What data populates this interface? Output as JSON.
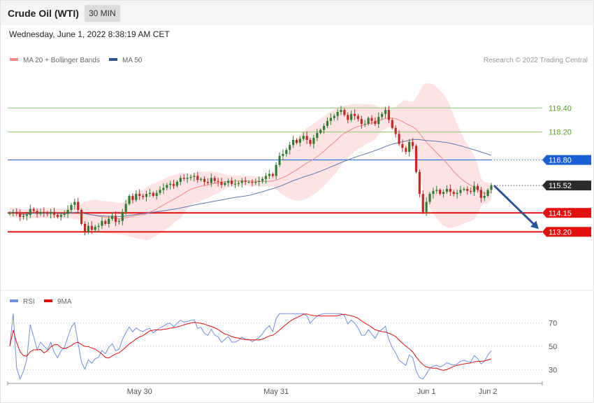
{
  "header": {
    "instrument": "Crude Oil (WTI)",
    "timeframe": "30 MIN",
    "datetime": "Wednesday, June 1, 2022 8:38:19 AM CET"
  },
  "legend_main": [
    {
      "label": "MA 20 + Bollinger Bands",
      "color": "#f08a8a"
    },
    {
      "label": "MA 50",
      "color": "#2b5597"
    }
  ],
  "credit": "Research © 2022 Trading Central",
  "legend_rsi": [
    {
      "label": "RSI",
      "color": "#6f8fe0"
    },
    {
      "label": "9MA",
      "color": "#e01010"
    }
  ],
  "colors": {
    "bull": "#2e7d32",
    "bear": "#c62828",
    "resistance": "#8cc870",
    "pivot": "#1a5fd6",
    "support": "#e31010",
    "last_price": "#2b2b2b",
    "band_fill": "#fcdcdc",
    "arrow": "#2b5597"
  },
  "chart_data": [
    {
      "type": "candlestick",
      "name": "price",
      "ylim": [
        110.8,
        121.3
      ],
      "x_labels": [
        {
          "label": "May 30",
          "index": 38
        },
        {
          "label": "May 31",
          "index": 78
        },
        {
          "label": "Jun 1",
          "index": 122
        },
        {
          "label": "Jun 2",
          "index": 140
        }
      ],
      "levels": [
        {
          "value": 119.4,
          "label": "119.40",
          "kind": "resistance"
        },
        {
          "value": 118.2,
          "label": "118.20",
          "kind": "resistance"
        },
        {
          "value": 116.8,
          "label": "116.80",
          "kind": "pivot"
        },
        {
          "value": 115.52,
          "label": "115.52",
          "kind": "last_price"
        },
        {
          "value": 114.15,
          "label": "114.15",
          "kind": "support"
        },
        {
          "value": 113.2,
          "label": "113.20",
          "kind": "support"
        }
      ],
      "closes": [
        114.15,
        114.2,
        114.1,
        113.95,
        114.0,
        114.05,
        114.35,
        114.25,
        114.1,
        114.2,
        114.15,
        114.1,
        114.2,
        114.05,
        113.95,
        114.05,
        114.1,
        114.3,
        114.55,
        114.7,
        114.3,
        113.6,
        113.2,
        113.5,
        113.3,
        113.45,
        113.5,
        113.75,
        113.6,
        113.85,
        114.0,
        113.7,
        113.75,
        114.2,
        114.6,
        115.0,
        114.8,
        115.1,
        115.0,
        114.95,
        115.1,
        115.15,
        115.0,
        115.15,
        115.3,
        115.4,
        115.55,
        115.6,
        115.5,
        115.7,
        115.9,
        115.85,
        115.9,
        115.95,
        116.0,
        115.8,
        115.85,
        115.7,
        115.65,
        115.9,
        115.75,
        115.7,
        115.55,
        115.65,
        115.75,
        115.6,
        115.6,
        115.65,
        115.75,
        115.7,
        115.7,
        115.65,
        115.7,
        115.75,
        115.85,
        116.0,
        116.1,
        116.0,
        116.55,
        117.0,
        117.1,
        117.3,
        117.55,
        117.8,
        117.65,
        117.85,
        118.0,
        117.8,
        117.6,
        117.9,
        118.15,
        118.3,
        118.5,
        118.75,
        118.9,
        119.0,
        119.2,
        119.3,
        119.05,
        118.8,
        119.1,
        119.0,
        118.85,
        118.6,
        118.6,
        118.9,
        118.75,
        118.6,
        118.95,
        119.1,
        119.3,
        118.8,
        118.4,
        118.1,
        117.6,
        117.4,
        117.2,
        117.7,
        117.5,
        116.2,
        115.1,
        114.2,
        114.7,
        115.1,
        115.25,
        115.3,
        115.1,
        115.2,
        115.35,
        115.2,
        115.1,
        115.15,
        115.3,
        115.35,
        115.25,
        115.2,
        115.5,
        115.3,
        114.9,
        115.0,
        115.3,
        115.52
      ],
      "series": [
        {
          "name": "MA 20 + Bollinger Bands",
          "kind": "ma20_bollinger"
        },
        {
          "name": "MA 50",
          "kind": "ma50"
        }
      ]
    },
    {
      "type": "line",
      "name": "rsi",
      "ylim": [
        20,
        80
      ],
      "yticks": [
        70,
        50,
        30
      ],
      "series": [
        {
          "name": "RSI",
          "kind": "rsi14"
        },
        {
          "name": "9MA",
          "kind": "sma9_of_rsi"
        }
      ]
    }
  ],
  "projection": {
    "from_index": 141,
    "from_value": 115.52,
    "to_value": 113.2
  }
}
